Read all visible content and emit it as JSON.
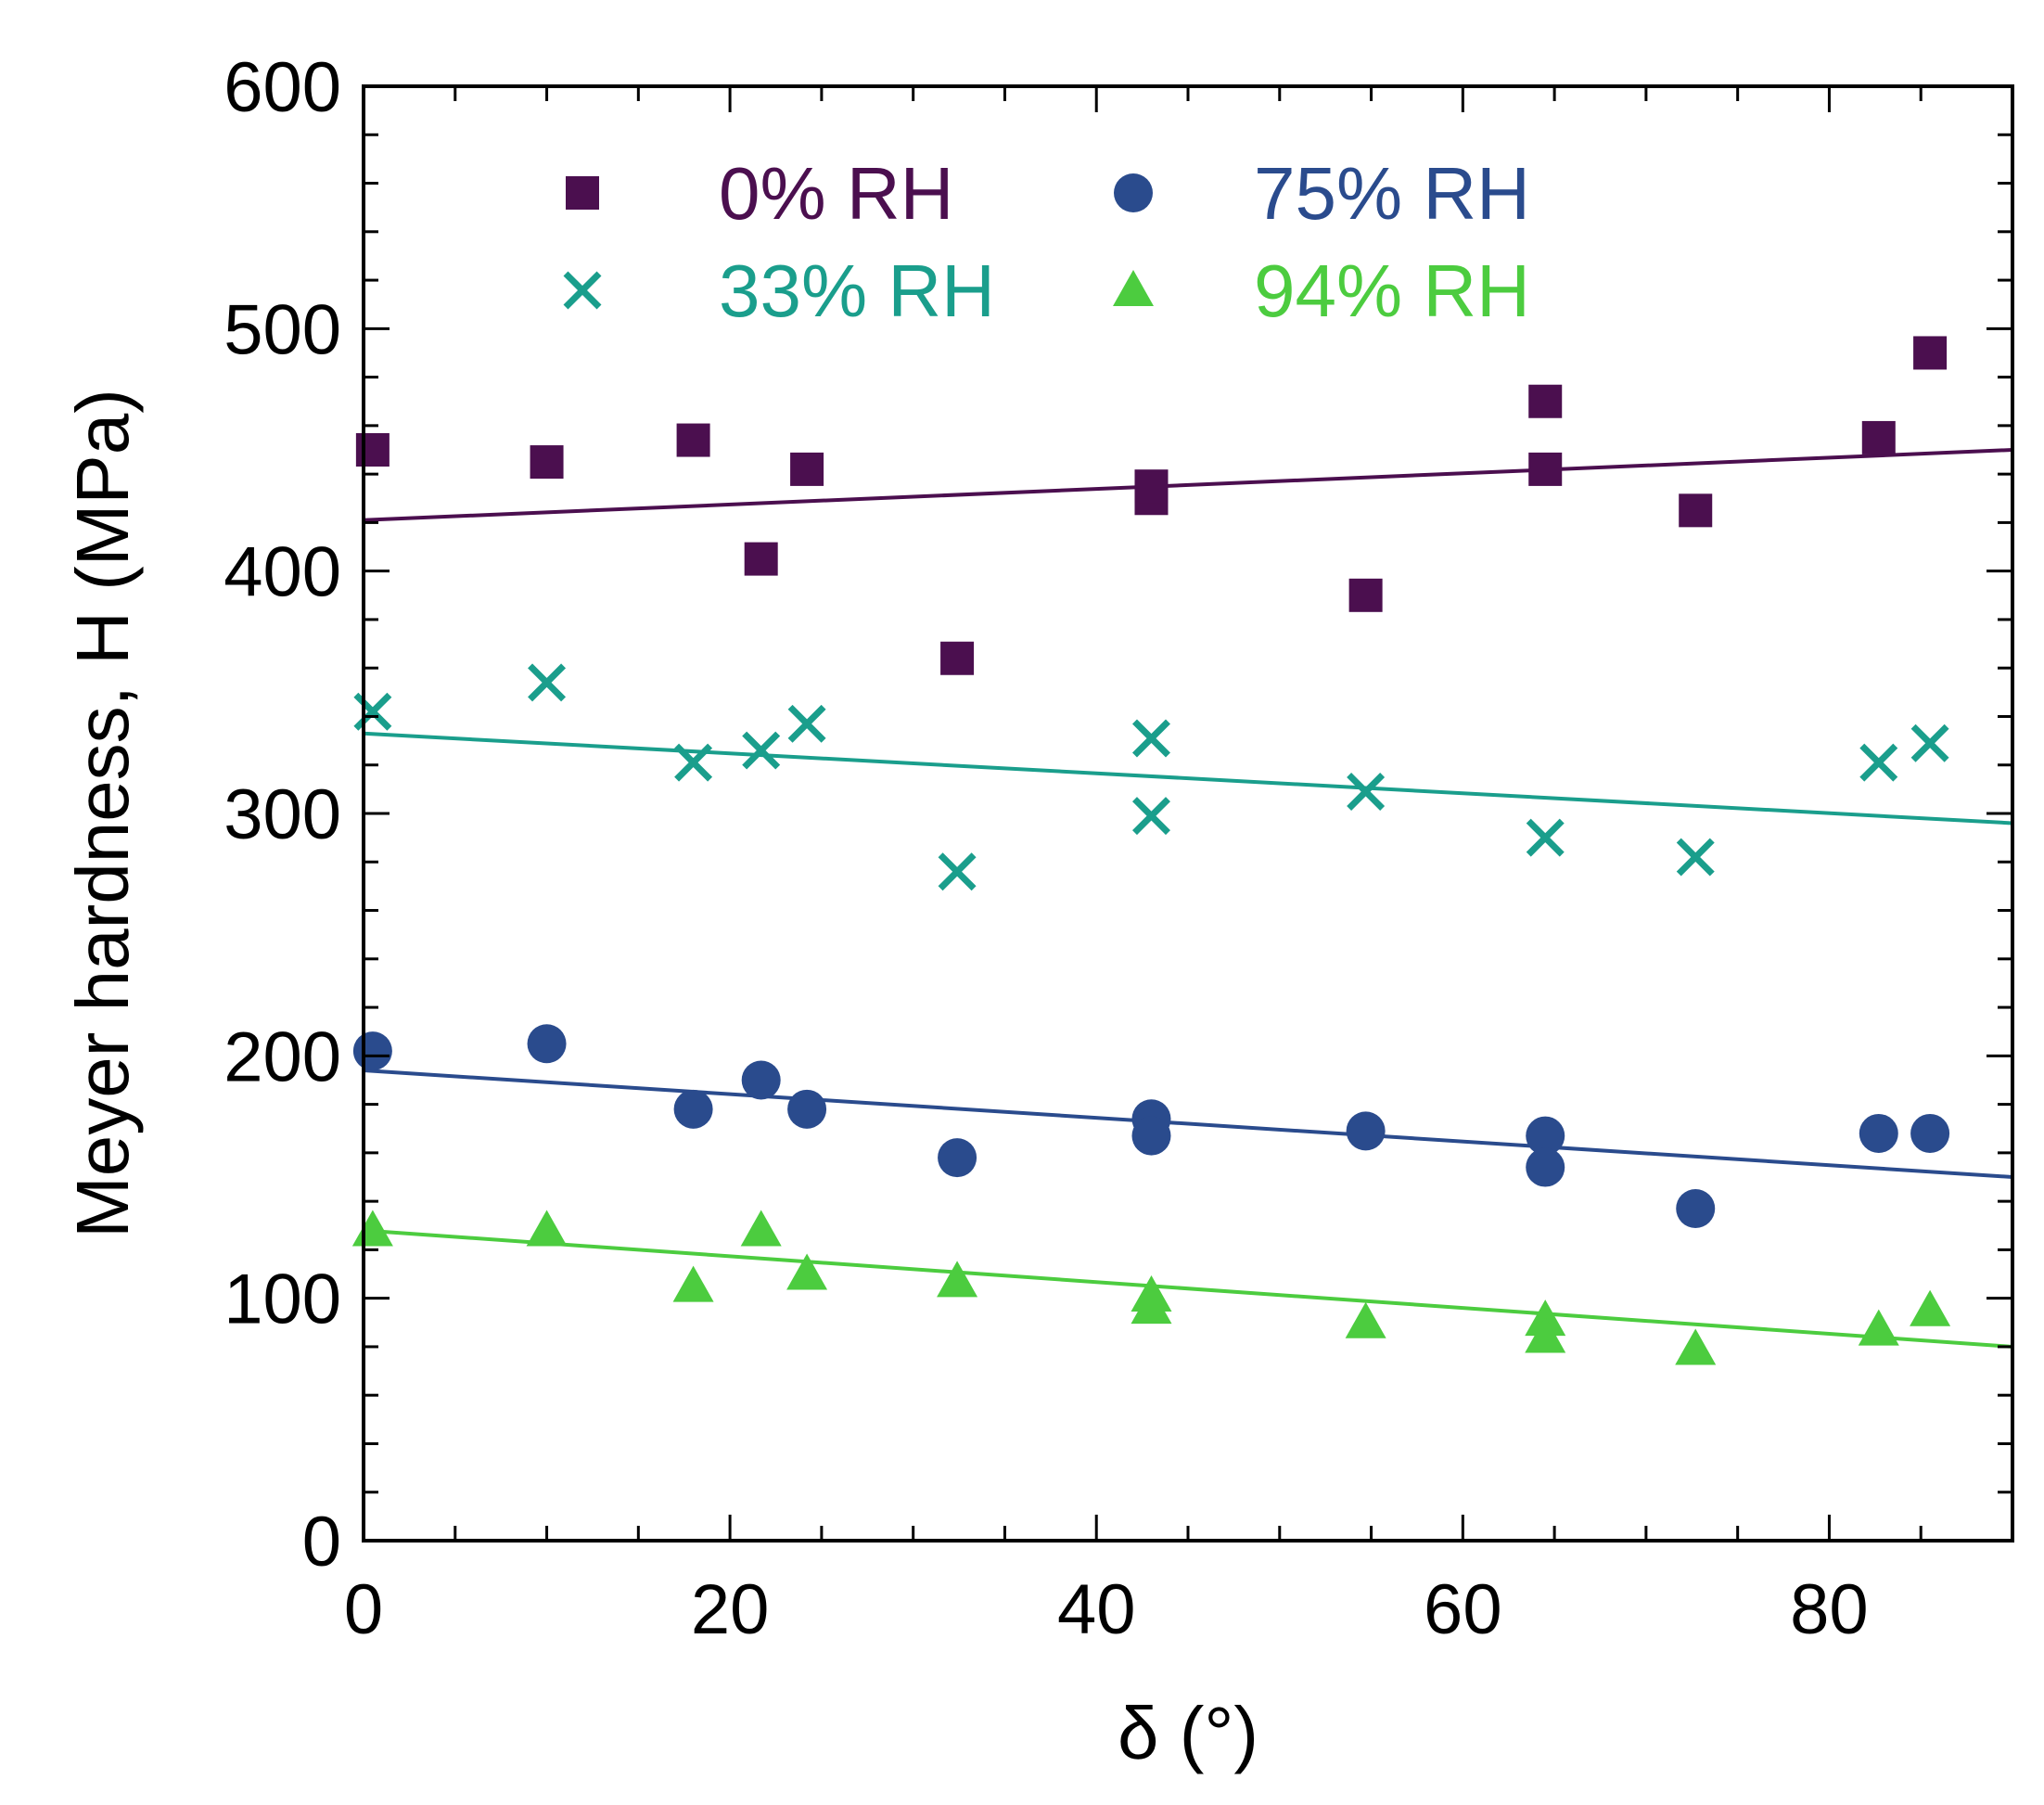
{
  "chart_data": {
    "type": "scatter",
    "title": "",
    "xlabel": "δ (°)",
    "ylabel": "Meyer hardness, H (MPa)",
    "xlim": [
      0,
      90
    ],
    "ylim": [
      0,
      600
    ],
    "x_ticks": [
      0,
      20,
      40,
      60,
      80
    ],
    "y_ticks": [
      0,
      100,
      200,
      300,
      400,
      500,
      600
    ],
    "x_minor_step": 5,
    "y_minor_step": 20,
    "grid": false,
    "legend_position": "top-center",
    "series": [
      {
        "name": "0% RH",
        "marker": "square",
        "color": "#4b0f4f",
        "points": [
          [
            0.5,
            450
          ],
          [
            10,
            445
          ],
          [
            18,
            454
          ],
          [
            21.7,
            405
          ],
          [
            24.2,
            442
          ],
          [
            32.4,
            364
          ],
          [
            43,
            430
          ],
          [
            43,
            435
          ],
          [
            54.7,
            390
          ],
          [
            64.5,
            470
          ],
          [
            64.5,
            442
          ],
          [
            72.7,
            425
          ],
          [
            82.7,
            455
          ],
          [
            85.5,
            490
          ]
        ],
        "fit": [
          [
            0,
            421
          ],
          [
            90,
            450
          ]
        ]
      },
      {
        "name": "33% RH",
        "marker": "x",
        "color": "#1a9e8c",
        "points": [
          [
            0.5,
            342
          ],
          [
            10,
            354
          ],
          [
            18,
            321
          ],
          [
            21.7,
            326
          ],
          [
            24.2,
            337
          ],
          [
            32.4,
            276
          ],
          [
            43,
            331
          ],
          [
            43,
            299
          ],
          [
            54.7,
            309
          ],
          [
            64.5,
            290
          ],
          [
            72.7,
            282
          ],
          [
            82.7,
            321
          ],
          [
            85.5,
            329
          ]
        ],
        "fit": [
          [
            0,
            333
          ],
          [
            90,
            296
          ]
        ]
      },
      {
        "name": "75% RH",
        "marker": "circle",
        "color": "#2a4b8d",
        "points": [
          [
            0.5,
            202
          ],
          [
            10,
            205
          ],
          [
            18,
            178
          ],
          [
            21.7,
            190
          ],
          [
            24.2,
            178
          ],
          [
            32.4,
            158
          ],
          [
            43,
            174
          ],
          [
            43,
            167
          ],
          [
            54.7,
            169
          ],
          [
            64.5,
            167
          ],
          [
            64.5,
            154
          ],
          [
            72.7,
            137
          ],
          [
            82.7,
            168
          ],
          [
            85.5,
            168
          ]
        ],
        "fit": [
          [
            0,
            194
          ],
          [
            90,
            150
          ]
        ]
      },
      {
        "name": "94% RH",
        "marker": "triangle",
        "color": "#4ccc3f",
        "points": [
          [
            0.5,
            128
          ],
          [
            10,
            128
          ],
          [
            18,
            105
          ],
          [
            21.7,
            128
          ],
          [
            24.2,
            110
          ],
          [
            32.4,
            107
          ],
          [
            43,
            101
          ],
          [
            43,
            96
          ],
          [
            54.7,
            90
          ],
          [
            64.5,
            91
          ],
          [
            64.5,
            84
          ],
          [
            72.7,
            79
          ],
          [
            82.7,
            87
          ],
          [
            85.5,
            95
          ]
        ],
        "fit": [
          [
            0,
            128
          ],
          [
            90,
            80
          ]
        ]
      }
    ]
  }
}
